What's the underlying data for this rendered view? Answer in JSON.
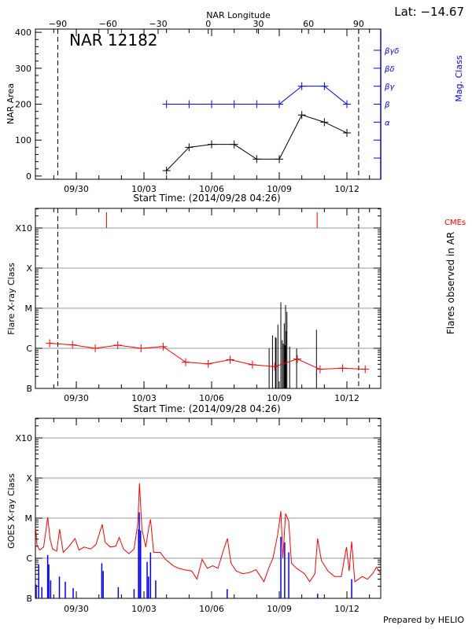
{
  "header": {
    "lat_label": "Lat: −14.67",
    "region_label": "NAR 12182",
    "prepared_by": "Prepared by HELIO"
  },
  "colors": {
    "area": "#000000",
    "mag": "#0000ff",
    "flare": "#ff0000",
    "cme": "#ff0000",
    "goes_long": "#ff0000",
    "goes_short": "#0000ff",
    "grid": "#999999"
  },
  "time_axis": {
    "start_label": "Start Time: (2014/09/28 04:26)",
    "day0": "2014/09/28 00:00",
    "ticks": [
      {
        "day": 2,
        "label": "09/30"
      },
      {
        "day": 5,
        "label": "10/03"
      },
      {
        "day": 8,
        "label": "10/06"
      },
      {
        "day": 11,
        "label": "10/09"
      },
      {
        "day": 14,
        "label": "10/12"
      }
    ],
    "range_days": [
      0.185,
      15.5
    ]
  },
  "limb_days": [
    1.18,
    14.52
  ],
  "chart_data": [
    {
      "type": "line",
      "title": "NAR 12182",
      "xlabel": "Start Time: (2014/09/28 04:26)",
      "ylabel": "NAR Area",
      "ylabel_right": "Mag. Class",
      "top_axis": {
        "label": "NAR Longitude",
        "ticks": [
          -90,
          -60,
          -30,
          0,
          30,
          60,
          90
        ],
        "tick_labels": [
          "−90",
          "−60",
          "−30",
          "0",
          "30",
          "60",
          "90"
        ],
        "day_at_minus90": 1.18,
        "day_at_plus90": 14.52
      },
      "ylim": [
        -9,
        409
      ],
      "yticks": [
        0,
        100,
        200,
        300,
        400
      ],
      "mag_levels": [
        {
          "area": 50,
          "label": ""
        },
        {
          "area": 100,
          "label": ""
        },
        {
          "area": 150,
          "label": "α"
        },
        {
          "area": 200,
          "label": "β"
        },
        {
          "area": 250,
          "label": "βγ"
        },
        {
          "area": 300,
          "label": "βδ"
        },
        {
          "area": 350,
          "label": "βγδ"
        }
      ],
      "series": [
        {
          "name": "NAR Area",
          "x_days": [
            6,
            7,
            8,
            9,
            10,
            11,
            12,
            13,
            14
          ],
          "values": [
            15,
            80,
            88,
            88,
            47,
            47,
            170,
            150,
            120
          ]
        },
        {
          "name": "Mag. Class",
          "x_days": [
            6,
            7,
            8,
            9,
            10,
            11,
            12,
            13,
            14
          ],
          "values": [
            "β",
            "β",
            "β",
            "β",
            "β",
            "β",
            "βγ",
            "βγ",
            "β"
          ]
        }
      ]
    },
    {
      "type": "line",
      "xlabel": "Start Time: (2014/09/28 04:26)",
      "ylabel": "Flare X-ray Class",
      "ylabel_right": "Flares observed in AR",
      "cme_label": "CMEs",
      "yscale": "log",
      "ylim": [
        1e-07,
        0.00309
      ],
      "class_levels": [
        {
          "flux": 1e-07,
          "label": "B"
        },
        {
          "flux": 1e-06,
          "label": "C"
        },
        {
          "flux": 1e-05,
          "label": "M"
        },
        {
          "flux": 0.0001,
          "label": "X"
        },
        {
          "flux": 0.001,
          "label": "X10"
        }
      ],
      "background_flux": {
        "x_days": [
          0.82,
          1.83,
          2.84,
          3.84,
          4.87,
          5.85,
          6.85,
          7.85,
          8.82,
          9.81,
          10.8,
          11.8,
          12.81,
          13.81,
          14.81
        ],
        "values": [
          1.33e-06,
          1.22e-06,
          1e-06,
          1.2e-06,
          1e-06,
          1.1e-06,
          4.5e-07,
          4.1e-07,
          5.2e-07,
          3.9e-07,
          3.5e-07,
          5.4e-07,
          3e-07,
          3.2e-07,
          3e-07
        ]
      },
      "flares": {
        "x_days": [
          10.55,
          10.7,
          10.83,
          10.86,
          10.94,
          11.07,
          11.13,
          11.18,
          11.22,
          11.25,
          11.28,
          11.3,
          11.34,
          11.46,
          11.77,
          12.65
        ],
        "values": [
          1e-06,
          2.1e-06,
          1.9e-06,
          1.8e-06,
          3.9e-06,
          1.4e-05,
          1.6e-06,
          1.3e-06,
          4.2e-06,
          1.2e-06,
          1.2e-05,
          2.7e-06,
          8.1e-06,
          1.1e-06,
          1e-06,
          2.9e-06
        ]
      },
      "cmes_days": [
        3.34,
        12.68
      ]
    },
    {
      "type": "line",
      "xlabel": "",
      "ylabel": "GOES X-ray Class",
      "yscale": "log",
      "ylim": [
        1e-07,
        0.00309
      ],
      "class_levels": [
        {
          "flux": 1e-07,
          "label": "B"
        },
        {
          "flux": 1e-06,
          "label": "C"
        },
        {
          "flux": 1e-05,
          "label": "M"
        },
        {
          "flux": 0.0001,
          "label": "X"
        },
        {
          "flux": 0.001,
          "label": "X10"
        }
      ],
      "series": [
        {
          "name": "GOES long channel",
          "x_days": [
            0.2,
            0.26,
            0.37,
            0.55,
            0.73,
            0.84,
            0.95,
            1.13,
            1.26,
            1.42,
            1.65,
            1.94,
            2.12,
            2.35,
            2.64,
            2.87,
            3.15,
            3.28,
            3.51,
            3.75,
            3.9,
            4.09,
            4.33,
            4.56,
            4.73,
            4.8,
            4.91,
            5.08,
            5.2,
            5.29,
            5.43,
            5.72,
            5.95,
            6.3,
            6.54,
            6.77,
            7.12,
            7.35,
            7.58,
            7.81,
            8.05,
            8.28,
            8.57,
            8.7,
            8.86,
            9.09,
            9.38,
            9.68,
            9.97,
            10.32,
            10.55,
            10.72,
            10.93,
            11.07,
            11.16,
            11.28,
            11.42,
            11.54,
            11.77,
            12.12,
            12.35,
            12.58,
            12.7,
            12.87,
            13.16,
            13.45,
            13.75,
            13.98,
            14.1,
            14.21,
            14.35,
            14.68,
            14.91,
            15.14,
            15.31,
            15.49
          ],
          "values": [
            5.3e-06,
            2.1e-06,
            1.6e-06,
            1.9e-06,
            1.05e-05,
            2.9e-06,
            1.7e-06,
            1.5e-06,
            5.3e-06,
            1.4e-06,
            1.9e-06,
            3.1e-06,
            1.6e-06,
            1.9e-06,
            1.7e-06,
            2.2e-06,
            7e-06,
            2.5e-06,
            1.9e-06,
            2e-06,
            3.3e-06,
            1.7e-06,
            1.3e-06,
            1.7e-06,
            7.7e-06,
            7.4e-05,
            5.3e-06,
            1.9e-06,
            5.3e-06,
            9.3e-06,
            1.4e-06,
            1.4e-06,
            9.4e-07,
            6.5e-07,
            5.6e-07,
            5.2e-07,
            4.8e-07,
            3e-07,
            9.4e-07,
            5.6e-07,
            6.5e-07,
            5.6e-07,
            1.9e-06,
            3.1e-06,
            7.5e-07,
            4.8e-07,
            4.1e-07,
            4.4e-07,
            5.2e-07,
            2.6e-07,
            6e-07,
            1e-06,
            3.9e-06,
            1.5e-05,
            1e-06,
            1.3e-05,
            8.3e-06,
            7.5e-07,
            5.6e-07,
            4.1e-07,
            2.6e-07,
            4.1e-07,
            3.1e-06,
            8.7e-07,
            4.8e-07,
            3.5e-07,
            3.5e-07,
            1.9e-06,
            4.8e-07,
            2.6e-06,
            2.6e-07,
            3.5e-07,
            3e-07,
            4.1e-07,
            6e-07,
            4.2e-07
          ]
        },
        {
          "name": "GOES short channel",
          "x_days": [
            0.22,
            0.33,
            0.47,
            0.73,
            0.78,
            0.86,
            1.25,
            1.51,
            1.86,
            3.13,
            3.19,
            3.86,
            4.56,
            4.76,
            4.79,
            4.85,
            5.14,
            5.2,
            5.29,
            5.52,
            8.69,
            11.07,
            11.24,
            11.42,
            12.7,
            14.21
          ],
          "values": [
            2.2e-07,
            7e-07,
            1.9e-07,
            1.2e-06,
            7e-07,
            2.8e-07,
            3.5e-07,
            2.6e-07,
            1.8e-07,
            7.5e-07,
            4.8e-07,
            1.9e-07,
            1.7e-07,
            5.3e-06,
            1.4e-05,
            4.9e-06,
            8.1e-07,
            3.5e-07,
            1.4e-06,
            2.8e-07,
            1.7e-07,
            3.4e-06,
            2.5e-06,
            1.4e-06,
            1.3e-07,
            3e-07
          ]
        }
      ]
    }
  ]
}
